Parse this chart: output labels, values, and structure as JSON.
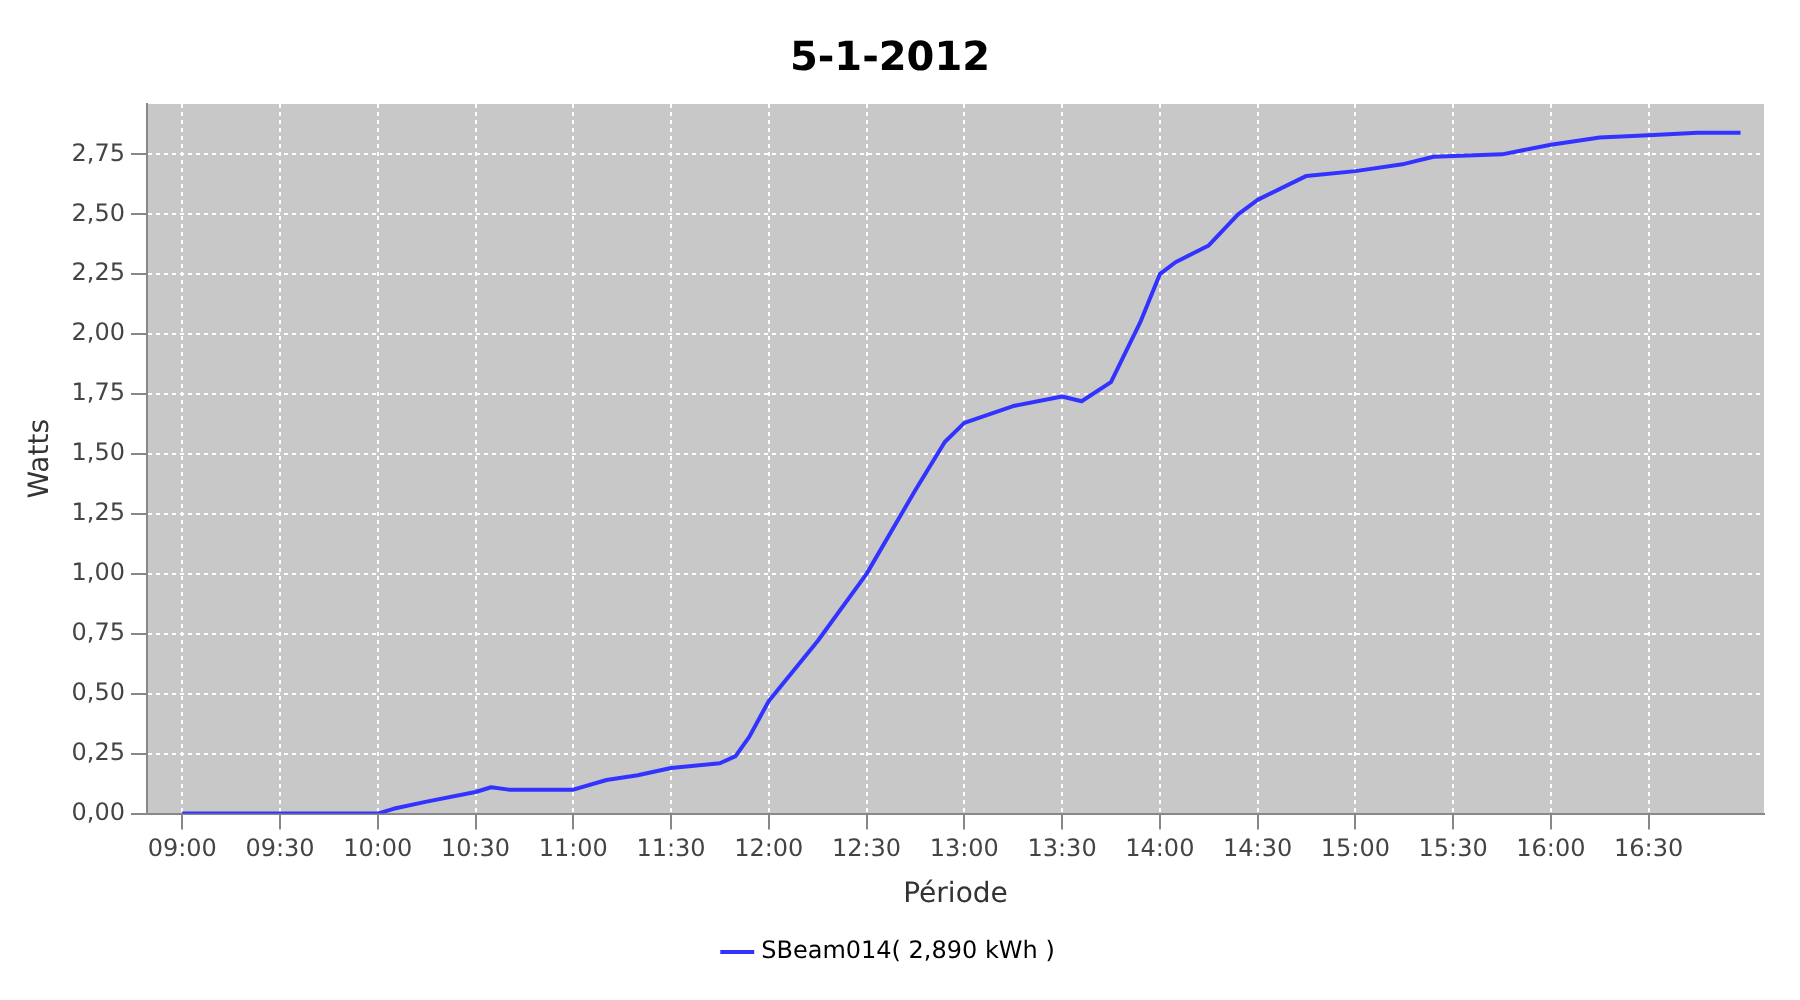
{
  "chart_data": {
    "type": "line",
    "title": "5-1-2012",
    "xlabel": "Période",
    "ylabel": "Watts",
    "xlim": [
      8.82,
      17.09
    ],
    "xticks": [
      {
        "value": 9,
        "label": "09:00"
      },
      {
        "value": 9.5,
        "label": "09:30"
      },
      {
        "value": 10,
        "label": "10:00"
      },
      {
        "value": 10.5,
        "label": "10:30"
      },
      {
        "value": 11,
        "label": "11:00"
      },
      {
        "value": 11.5,
        "label": "11:30"
      },
      {
        "value": 12,
        "label": "12:00"
      },
      {
        "value": 12.5,
        "label": "12:30"
      },
      {
        "value": 13,
        "label": "13:00"
      },
      {
        "value": 13.5,
        "label": "13:30"
      },
      {
        "value": 14,
        "label": "14:00"
      },
      {
        "value": 14.5,
        "label": "14:30"
      },
      {
        "value": 15,
        "label": "15:00"
      },
      {
        "value": 15.5,
        "label": "15:30"
      },
      {
        "value": 16,
        "label": "16:00"
      },
      {
        "value": 16.5,
        "label": "16:30"
      }
    ],
    "ylim": [
      0,
      2.96
    ],
    "yticks": [
      {
        "value": 0,
        "label": "0,00"
      },
      {
        "value": 0.25,
        "label": "0,25"
      },
      {
        "value": 0.5,
        "label": "0,50"
      },
      {
        "value": 0.75,
        "label": "0,75"
      },
      {
        "value": 1,
        "label": "1,00"
      },
      {
        "value": 1.25,
        "label": "1,25"
      },
      {
        "value": 1.5,
        "label": "1,50"
      },
      {
        "value": 1.75,
        "label": "1,75"
      },
      {
        "value": 2,
        "label": "2,00"
      },
      {
        "value": 2.25,
        "label": "2,25"
      },
      {
        "value": 2.5,
        "label": "2,50"
      },
      {
        "value": 2.75,
        "label": "2,75"
      }
    ],
    "grid": true,
    "legend": "bottom",
    "marker": "none",
    "line_style": "solid",
    "series": [
      {
        "name": "SBeam014( 2,890 kWh )",
        "color": "#3333ff",
        "x": [
          9,
          10,
          10.08,
          10.25,
          10.5,
          10.58,
          10.67,
          11,
          11.17,
          11.33,
          11.5,
          11.75,
          11.83,
          11.9,
          12,
          12.25,
          12.5,
          12.75,
          12.9,
          13,
          13.25,
          13.5,
          13.6,
          13.75,
          13.9,
          14,
          14.08,
          14.25,
          14.4,
          14.5,
          14.75,
          15,
          15.25,
          15.4,
          15.75,
          16,
          16.25,
          16.5,
          16.75,
          16.97
        ],
        "values": [
          0,
          0,
          0.02,
          0.05,
          0.09,
          0.11,
          0.1,
          0.1,
          0.14,
          0.16,
          0.19,
          0.21,
          0.24,
          0.32,
          0.47,
          0.72,
          1,
          1.35,
          1.55,
          1.63,
          1.7,
          1.74,
          1.72,
          1.8,
          2.05,
          2.25,
          2.3,
          2.37,
          2.5,
          2.56,
          2.66,
          2.68,
          2.71,
          2.74,
          2.75,
          2.79,
          2.82,
          2.83,
          2.84,
          2.84
        ]
      }
    ]
  }
}
